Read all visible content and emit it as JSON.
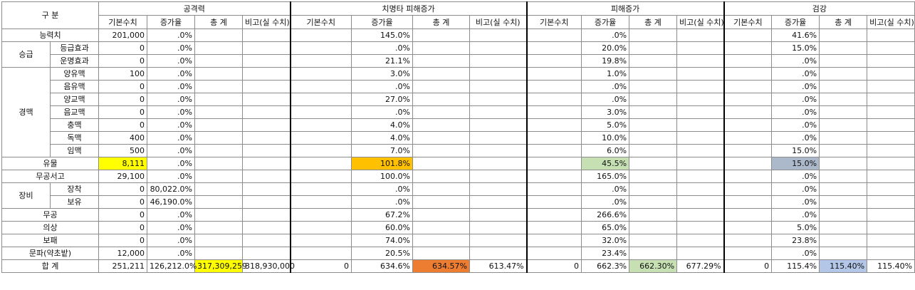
{
  "header": {
    "gubun": "구 분",
    "groups": [
      {
        "title": "공격력",
        "cols": [
          "기본수치",
          "증가율",
          "총 계",
          "비고(실 수치)"
        ]
      },
      {
        "title": "치명타 피해증가",
        "cols": [
          "기본수치",
          "증가율",
          "총 계",
          "비고(실 수치)"
        ]
      },
      {
        "title": "피해증가",
        "cols": [
          "기본수치",
          "증가율",
          "총 계",
          "비고(실 수치)"
        ]
      },
      {
        "title": "검강",
        "cols": [
          "기본수치",
          "증가율",
          "총 계",
          "비고(실 수치)"
        ]
      }
    ]
  },
  "highlights": {
    "yellow": "#ffff00",
    "orange": "#ffc000",
    "green": "#c6e0b4",
    "slate": "#acb9ca",
    "deep_orange": "#ed7d31",
    "light_blue": "#b4c6e7"
  },
  "labels": {
    "ability": "능력치",
    "rank": "승급",
    "rank_grade": "등급효과",
    "rank_fate": "운명효과",
    "meridian": "경맥",
    "m1": "양유맥",
    "m2": "음유맥",
    "m3": "양교맥",
    "m4": "음교맥",
    "m5": "충맥",
    "m6": "독맥",
    "m7": "임맥",
    "relic": "유물",
    "manual": "무공서고",
    "equip": "장비",
    "equip_worn": "장착",
    "equip_owned": "보유",
    "martial": "무공",
    "outfit": "의상",
    "treasure": "보패",
    "faction": "문파(약초밭)",
    "total": "합 계"
  },
  "rows": [
    {
      "key": "ability",
      "v": [
        "201,000",
        ".0%",
        "",
        "",
        "",
        "145.0%",
        "",
        "",
        "",
        ".0%",
        "",
        "",
        "",
        "41.6%",
        "",
        ""
      ]
    },
    {
      "key": "rank_grade",
      "v": [
        "0",
        ".0%",
        "",
        "",
        "",
        ".0%",
        "",
        "",
        "",
        "20.0%",
        "",
        "",
        "",
        "15.0%",
        "",
        ""
      ]
    },
    {
      "key": "rank_fate",
      "v": [
        "0",
        ".0%",
        "",
        "",
        "",
        "21.1%",
        "",
        "",
        "",
        "19.8%",
        "",
        "",
        "",
        ".0%",
        "",
        ""
      ]
    },
    {
      "key": "m1",
      "v": [
        "100",
        ".0%",
        "",
        "",
        "",
        "3.0%",
        "",
        "",
        "",
        "1.0%",
        "",
        "",
        "",
        ".0%",
        "",
        ""
      ]
    },
    {
      "key": "m2",
      "v": [
        "0",
        ".0%",
        "",
        "",
        "",
        ".0%",
        "",
        "",
        "",
        ".0%",
        "",
        "",
        "",
        ".0%",
        "",
        ""
      ]
    },
    {
      "key": "m3",
      "v": [
        "0",
        ".0%",
        "",
        "",
        "",
        "27.0%",
        "",
        "",
        "",
        ".0%",
        "",
        "",
        "",
        ".0%",
        "",
        ""
      ]
    },
    {
      "key": "m4",
      "v": [
        "0",
        ".0%",
        "",
        "",
        "",
        ".0%",
        "",
        "",
        "",
        "3.0%",
        "",
        "",
        "",
        ".0%",
        "",
        ""
      ]
    },
    {
      "key": "m5",
      "v": [
        "0",
        ".0%",
        "",
        "",
        "",
        "4.0%",
        "",
        "",
        "",
        "5.0%",
        "",
        "",
        "",
        ".0%",
        "",
        ""
      ]
    },
    {
      "key": "m6",
      "v": [
        "400",
        ".0%",
        "",
        "",
        "",
        "4.0%",
        "",
        "",
        "",
        "10.0%",
        "",
        "",
        "",
        ".0%",
        "",
        ""
      ]
    },
    {
      "key": "m7",
      "v": [
        "500",
        ".0%",
        "",
        "",
        "",
        "7.0%",
        "",
        "",
        "",
        "6.0%",
        "",
        "",
        "",
        "15.0%",
        "",
        ""
      ]
    },
    {
      "key": "relic",
      "v": [
        "8,111",
        ".0%",
        "",
        "",
        "",
        "101.8%",
        "",
        "",
        "",
        "45.5%",
        "",
        "",
        "",
        "15.0%",
        "",
        ""
      ]
    },
    {
      "key": "manual",
      "v": [
        "29,100",
        ".0%",
        "",
        "",
        "",
        "100.0%",
        "",
        "",
        "",
        "165.0%",
        "",
        "",
        "",
        ".0%",
        "",
        ""
      ]
    },
    {
      "key": "equip_worn",
      "v": [
        "0",
        "80,022.0%",
        "",
        "",
        "",
        ".0%",
        "",
        "",
        "",
        ".0%",
        "",
        "",
        "",
        ".0%",
        "",
        ""
      ]
    },
    {
      "key": "equip_owned",
      "v": [
        "0",
        "46,190.0%",
        "",
        "",
        "",
        ".0%",
        "",
        "",
        "",
        ".0%",
        "",
        "",
        "",
        ".0%",
        "",
        ""
      ]
    },
    {
      "key": "martial",
      "v": [
        "0",
        ".0%",
        "",
        "",
        "",
        "67.2%",
        "",
        "",
        "",
        "266.6%",
        "",
        "",
        "",
        ".0%",
        "",
        ""
      ]
    },
    {
      "key": "outfit",
      "v": [
        "0",
        ".0%",
        "",
        "",
        "",
        "60.0%",
        "",
        "",
        "",
        "65.0%",
        "",
        "",
        "",
        "5.0%",
        "",
        ""
      ]
    },
    {
      "key": "treasure",
      "v": [
        "0",
        ".0%",
        "",
        "",
        "",
        "74.0%",
        "",
        "",
        "",
        "32.0%",
        "",
        "",
        "",
        "23.8%",
        "",
        ""
      ]
    },
    {
      "key": "faction",
      "v": [
        "12,000",
        ".0%",
        "",
        "",
        "",
        "20.5%",
        "",
        "",
        "",
        "23.4%",
        "",
        "",
        "",
        ".0%",
        "",
        ""
      ]
    },
    {
      "key": "total",
      "v": [
        "251,211",
        "126,212.0%",
        "317,309,259",
        "318,930,000",
        "0",
        "634.6%",
        "634.57%",
        "613.47%",
        "0",
        "662.3%",
        "662.30%",
        "677.29%",
        "0",
        "115.4%",
        "115.40%",
        "115.40%"
      ]
    }
  ]
}
